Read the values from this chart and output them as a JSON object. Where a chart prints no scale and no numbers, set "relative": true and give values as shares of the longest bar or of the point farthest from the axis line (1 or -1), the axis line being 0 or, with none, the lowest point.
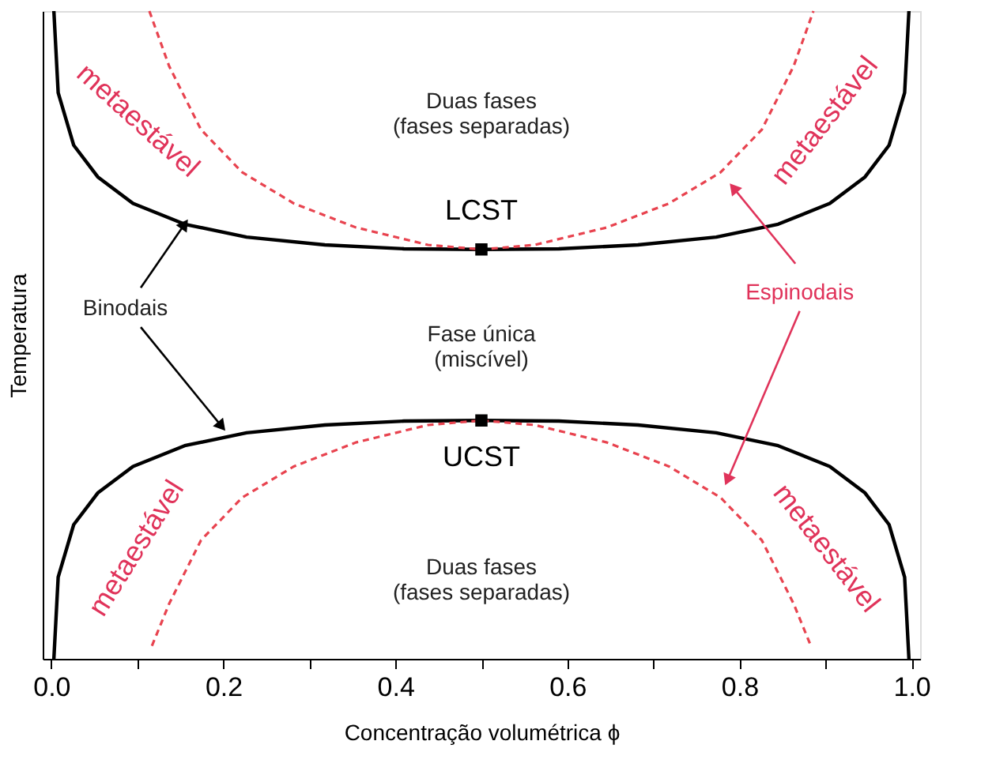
{
  "chart_data": {
    "type": "line",
    "relative": true,
    "xlabel": "Concentração volumétrica  ϕ",
    "ylabel": "Temperatura",
    "xlim": [
      -0.01,
      1.01
    ],
    "xticks": [
      {
        "value": 0,
        "label": "0.0"
      },
      {
        "value": 0.1,
        "label": null
      },
      {
        "value": 0.2,
        "label": "0.2"
      },
      {
        "value": 0.3,
        "label": null
      },
      {
        "value": 0.4,
        "label": "0.4"
      },
      {
        "value": 0.5,
        "label": null
      },
      {
        "value": 0.6,
        "label": "0.6"
      },
      {
        "value": 0.7,
        "label": null
      },
      {
        "value": 0.8,
        "label": "0.8"
      },
      {
        "value": 0.9,
        "label": null
      },
      {
        "value": 1,
        "label": "1.0"
      }
    ],
    "tick_labels": "x",
    "grid": false,
    "series": [
      {
        "color": "#000000",
        "line_style": "solid",
        "marker": "none",
        "x": [
          0.003,
          0.008,
          0.026,
          0.054,
          0.095,
          0.155,
          0.227,
          0.318,
          0.41,
          0.5,
          0.59,
          0.682,
          0.773,
          0.845,
          0.905,
          0.946,
          0.974,
          0.992,
          0.997
        ],
        "values": [
          1.0,
          0.874,
          0.793,
          0.744,
          0.703,
          0.671,
          0.651,
          0.639,
          0.633,
          0.632,
          0.633,
          0.639,
          0.651,
          0.671,
          0.703,
          0.744,
          0.793,
          0.874,
          1.0
        ]
      },
      {
        "color": "#000000",
        "line_style": "solid",
        "marker": "none",
        "x": [
          0.003,
          0.008,
          0.026,
          0.054,
          0.095,
          0.155,
          0.227,
          0.318,
          0.41,
          0.5,
          0.59,
          0.682,
          0.773,
          0.845,
          0.905,
          0.946,
          0.974,
          0.992,
          0.997
        ],
        "values": [
          0.0,
          0.126,
          0.207,
          0.256,
          0.297,
          0.329,
          0.349,
          0.361,
          0.367,
          0.368,
          0.367,
          0.361,
          0.349,
          0.329,
          0.297,
          0.256,
          0.207,
          0.126,
          0.0
        ]
      },
      {
        "color": "#e8434f",
        "line_style": "dashed",
        "marker": "none",
        "x": [
          0.114,
          0.137,
          0.174,
          0.222,
          0.282,
          0.354,
          0.438,
          0.5,
          0.562,
          0.646,
          0.718,
          0.778,
          0.826,
          0.863,
          0.886
        ],
        "values": [
          1.0,
          0.915,
          0.817,
          0.751,
          0.703,
          0.666,
          0.639,
          0.632,
          0.639,
          0.666,
          0.703,
          0.751,
          0.817,
          0.915,
          1.0
        ]
      },
      {
        "color": "#e8434f",
        "line_style": "dashed",
        "marker": "none",
        "x": [
          0.117,
          0.137,
          0.174,
          0.222,
          0.282,
          0.354,
          0.438,
          0.5,
          0.562,
          0.646,
          0.718,
          0.778,
          0.826,
          0.863,
          0.883
        ],
        "values": [
          0.02,
          0.085,
          0.183,
          0.249,
          0.297,
          0.334,
          0.361,
          0.368,
          0.361,
          0.334,
          0.297,
          0.249,
          0.183,
          0.085,
          0.02
        ]
      },
      {
        "type": "scatter",
        "color": "#000000",
        "marker": "square",
        "x": [
          0.5,
          0.5
        ],
        "values": [
          0.632,
          0.368
        ]
      }
    ],
    "annotations": [
      "Duas fases\n(fases separadas)",
      "LCST",
      "Fase única\n(miscível)",
      "UCST",
      "Duas fases\n(fases separadas)",
      "Binodais",
      "Espinodais",
      "metaestável",
      "metaestável",
      "metaestável",
      "metaestável"
    ]
  }
}
